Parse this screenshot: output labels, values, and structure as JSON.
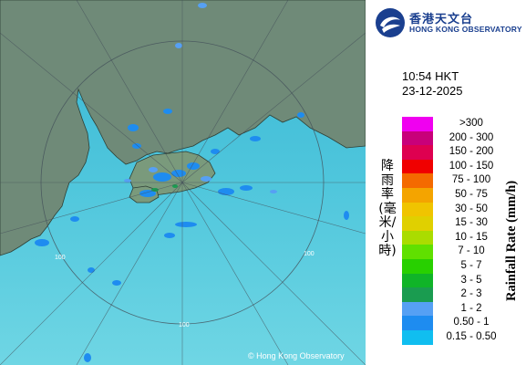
{
  "header": {
    "org_name_cn": "香港天文台",
    "org_name_en": "HONG KONG OBSERVATORY"
  },
  "timestamp": {
    "time": "10:54 HKT",
    "date": "23-12-2025"
  },
  "legend": {
    "title_cn": "降雨率(毫米/小時)",
    "title_en": "Rainfall Rate (mm/h)",
    "items": [
      {
        "label": ">300",
        "color": "#f000f0"
      },
      {
        "label": "200 - 300",
        "color": "#c8007a"
      },
      {
        "label": "150 - 200",
        "color": "#de0050"
      },
      {
        "label": "100 - 150",
        "color": "#f00000"
      },
      {
        "label": "75 - 100",
        "color": "#f46a00"
      },
      {
        "label": "50 - 75",
        "color": "#f4a400"
      },
      {
        "label": "30 - 50",
        "color": "#f0c400"
      },
      {
        "label": "15 - 30",
        "color": "#e0d000"
      },
      {
        "label": "10 - 15",
        "color": "#aadc00"
      },
      {
        "label": "7 - 10",
        "color": "#60e000"
      },
      {
        "label": "5 - 7",
        "color": "#28d000"
      },
      {
        "label": "3 - 5",
        "color": "#10b428"
      },
      {
        "label": "2 - 3",
        "color": "#1a9c50"
      },
      {
        "label": "1 - 2",
        "color": "#56a0f4"
      },
      {
        "label": "0.50 - 1",
        "color": "#1e8cf0"
      },
      {
        "label": "0.15 - 0.50",
        "color": "#10bef0"
      }
    ]
  },
  "map": {
    "range_labels": [
      "100",
      "100",
      "100"
    ],
    "copyright": "© Hong Kong Observatory"
  }
}
